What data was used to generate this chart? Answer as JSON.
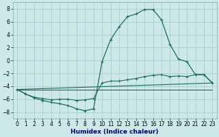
{
  "xlabel": "Humidex (Indice chaleur)",
  "bg_color": "#cce8e8",
  "grid_color": "#aacccc",
  "line_color": "#1a6b5a",
  "xlim": [
    -0.5,
    23.5
  ],
  "ylim": [
    -9,
    9
  ],
  "yticks": [
    -8,
    -6,
    -4,
    -2,
    0,
    2,
    4,
    6,
    8
  ],
  "xticks": [
    0,
    1,
    2,
    3,
    4,
    5,
    6,
    7,
    8,
    9,
    10,
    11,
    12,
    13,
    14,
    15,
    16,
    17,
    18,
    19,
    20,
    21,
    22,
    23
  ],
  "series1": [
    [
      0,
      -4.5
    ],
    [
      1,
      -5.2
    ],
    [
      2,
      -5.8
    ],
    [
      3,
      -6.2
    ],
    [
      4,
      -6.5
    ],
    [
      5,
      -6.7
    ],
    [
      6,
      -7.0
    ],
    [
      7,
      -7.5
    ],
    [
      8,
      -7.8
    ],
    [
      9,
      -7.5
    ],
    [
      10,
      -0.2
    ],
    [
      11,
      3.2
    ],
    [
      12,
      5.2
    ],
    [
      13,
      6.8
    ],
    [
      14,
      7.2
    ],
    [
      15,
      7.9
    ],
    [
      16,
      7.9
    ],
    [
      17,
      6.3
    ],
    [
      18,
      2.5
    ],
    [
      19,
      0.2
    ],
    [
      20,
      -0.2
    ],
    [
      21,
      -2.2
    ],
    [
      22,
      -2.2
    ],
    [
      23,
      -3.5
    ]
  ],
  "series2": [
    [
      0,
      -4.5
    ],
    [
      1,
      -5.2
    ],
    [
      2,
      -5.7
    ],
    [
      3,
      -5.9
    ],
    [
      4,
      -6.1
    ],
    [
      5,
      -6.0
    ],
    [
      6,
      -6.0
    ],
    [
      7,
      -6.2
    ],
    [
      8,
      -6.1
    ],
    [
      9,
      -5.9
    ],
    [
      10,
      -3.5
    ],
    [
      11,
      -3.2
    ],
    [
      12,
      -3.2
    ],
    [
      13,
      -3.0
    ],
    [
      14,
      -2.8
    ],
    [
      15,
      -2.5
    ],
    [
      16,
      -2.3
    ],
    [
      17,
      -2.2
    ],
    [
      18,
      -2.5
    ],
    [
      19,
      -2.4
    ],
    [
      20,
      -2.5
    ],
    [
      21,
      -2.2
    ],
    [
      22,
      -2.2
    ],
    [
      23,
      -3.5
    ]
  ],
  "series3": [
    [
      0,
      -4.5
    ],
    [
      23,
      -3.5
    ]
  ],
  "series4": [
    [
      0,
      -4.5
    ],
    [
      23,
      -4.5
    ]
  ]
}
